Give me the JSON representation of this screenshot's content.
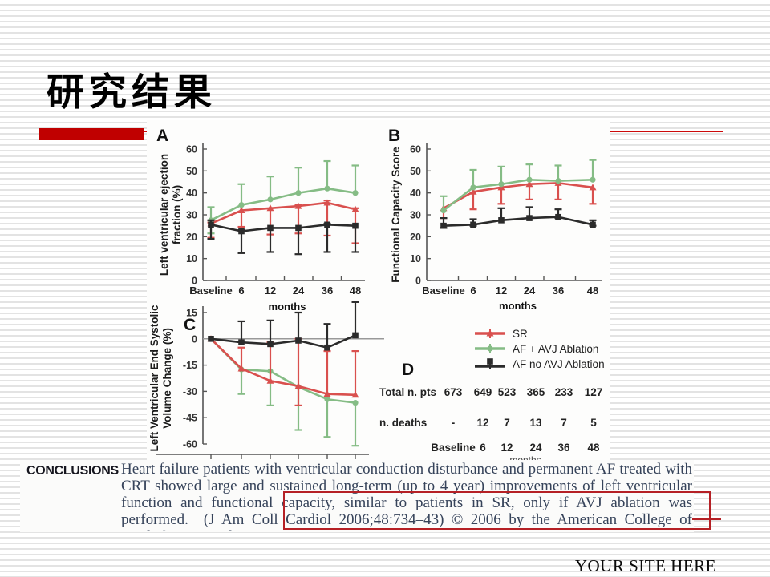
{
  "slide": {
    "title": "研究结果",
    "footer": "YOUR SITE HERE"
  },
  "colors": {
    "accent_red": "#c00000",
    "annotation_red": "#b52025",
    "chart_red": "#d9504e",
    "chart_green": "#85bc85",
    "chart_black": "#2b2b2b",
    "axis_gray": "#555555"
  },
  "legend": {
    "items": [
      {
        "label": "SR",
        "color": "#d9504e",
        "marker": "triangle"
      },
      {
        "label": "AF + AVJ Ablation",
        "color": "#85bc85",
        "marker": "circle"
      },
      {
        "label": "AF no AVJ Ablation",
        "color": "#2b2b2b",
        "marker": "square"
      }
    ]
  },
  "chart_data": [
    {
      "type": "line",
      "panel": "A",
      "ylabel_lines": [
        "Left ventricular ejection",
        "fraction (%)"
      ],
      "xlabel": "months",
      "categories": [
        "Baseline",
        "6",
        "12",
        "24",
        "36",
        "48"
      ],
      "ylim": [
        0,
        60
      ],
      "yticks": [
        0,
        10,
        20,
        30,
        40,
        50,
        60
      ],
      "series": [
        {
          "name": "SR",
          "color": "#d9504e",
          "marker": "triangle",
          "values": [
            26,
            32,
            33,
            34,
            35.5,
            32.5
          ],
          "err_lo": [
            19.5,
            24.5,
            21,
            21.5,
            20.5,
            17
          ],
          "err_hi": [
            26.5,
            32,
            33,
            34.5,
            36.5,
            33
          ]
        },
        {
          "name": "AF + AVJ Ablation",
          "color": "#85bc85",
          "marker": "circle",
          "values": [
            27.5,
            34.5,
            37,
            40,
            42,
            40
          ],
          "err_lo": [
            21.5,
            34.5,
            37,
            40,
            42,
            40
          ],
          "err_hi": [
            33.5,
            44,
            47.5,
            51.5,
            54.5,
            52.5
          ]
        },
        {
          "name": "AF no AVJ Ablation",
          "color": "#2b2b2b",
          "marker": "square",
          "values": [
            25.5,
            22.5,
            24,
            24,
            25.5,
            25
          ],
          "err_lo": [
            19,
            12.5,
            13,
            12,
            13,
            13
          ],
          "err_hi": [
            27.5,
            23,
            24,
            24,
            26,
            25
          ]
        }
      ]
    },
    {
      "type": "line",
      "panel": "B",
      "ylabel_lines": [
        "Functional Capacity Score"
      ],
      "xlabel": "months",
      "categories": [
        "Baseline",
        "6",
        "12",
        "24",
        "36",
        "48"
      ],
      "ylim": [
        0,
        60
      ],
      "yticks": [
        0,
        10,
        20,
        30,
        40,
        50,
        60
      ],
      "series": [
        {
          "name": "SR",
          "color": "#d9504e",
          "marker": "triangle",
          "values": [
            33,
            40.5,
            42.5,
            44,
            44.5,
            42.5
          ],
          "err_lo": [
            28.5,
            32.5,
            35,
            37,
            37,
            35
          ],
          "err_hi": [
            33,
            40.5,
            42.5,
            44,
            44.5,
            42.5
          ]
        },
        {
          "name": "AF + AVJ Ablation",
          "color": "#85bc85",
          "marker": "circle",
          "values": [
            32,
            42.5,
            44,
            46,
            45.5,
            46
          ],
          "err_lo": [
            32,
            42.5,
            44,
            46,
            45.5,
            46
          ],
          "err_hi": [
            38.5,
            50.5,
            52,
            53,
            52.5,
            55
          ]
        },
        {
          "name": "AF no AVJ Ablation",
          "color": "#2b2b2b",
          "marker": "square",
          "values": [
            25,
            25.5,
            27.5,
            28.5,
            29,
            25.5
          ],
          "err_lo": [
            24,
            25,
            27.5,
            28.5,
            28.5,
            25
          ],
          "err_hi": [
            28.5,
            28,
            33,
            33.5,
            32.5,
            27.5
          ]
        }
      ]
    },
    {
      "type": "line",
      "panel": "C",
      "ylabel_lines": [
        "Left Ventricular End Systolic",
        "Volume Change (%)"
      ],
      "xlabel": "",
      "categories": [
        "Baseline",
        "6",
        "12",
        "24",
        "36",
        "48"
      ],
      "ylim": [
        -60,
        15
      ],
      "yticks": [
        15,
        0,
        -15,
        -30,
        -45,
        -60
      ],
      "series": [
        {
          "name": "AF + AVJ Ablation",
          "color": "#85bc85",
          "marker": "circle",
          "values": [
            0,
            -17.5,
            -18.5,
            -27.5,
            -34.5,
            -36.5
          ],
          "err_lo": [
            0,
            -31.5,
            -38,
            -52,
            -56,
            -61
          ],
          "err_hi": [
            0,
            -17.5,
            -18.5,
            -27.5,
            -34.5,
            -36.5
          ]
        },
        {
          "name": "SR",
          "color": "#d9504e",
          "marker": "triangle",
          "values": [
            0,
            -17,
            -24,
            -27,
            -31.5,
            -32
          ],
          "err_lo": [
            0,
            -17,
            -24,
            -38,
            -31.5,
            -32
          ],
          "err_hi": [
            0,
            -5,
            -2,
            0,
            -7,
            -7
          ]
        },
        {
          "name": "AF no AVJ Ablation",
          "color": "#2b2b2b",
          "marker": "square",
          "values": [
            0,
            -2,
            -3,
            -1,
            -5,
            2
          ],
          "err_lo": [
            0,
            -2,
            -3,
            -1,
            -5,
            2
          ],
          "err_hi": [
            0,
            10,
            10.5,
            15,
            8.5,
            21
          ]
        }
      ]
    },
    {
      "type": "table",
      "panel": "D",
      "rows": [
        {
          "label": "Total n. pts",
          "values": [
            "673",
            "649",
            "523",
            "365",
            "233",
            "127"
          ]
        },
        {
          "label": "n. deaths",
          "values": [
            "-",
            "12",
            "7",
            "13",
            "7",
            "5"
          ]
        }
      ],
      "footer_row": [
        "Baseline",
        "6",
        "12",
        "24",
        "36",
        "48"
      ],
      "footnote": "months"
    }
  ],
  "conclusions": {
    "label": "CONCLUSIONS",
    "text": "Heart failure patients with ventricular conduction disturbance and permanent AF treated with CRT showed large and sustained long-term (up to 4 year) improvements of left ventricular function and functional capacity, similar to patients in SR, only if AVJ ablation was performed.  (J Am Coll Cardiol 2006;48:734–43) © 2006 by the American College of Cardiology Foundation."
  }
}
